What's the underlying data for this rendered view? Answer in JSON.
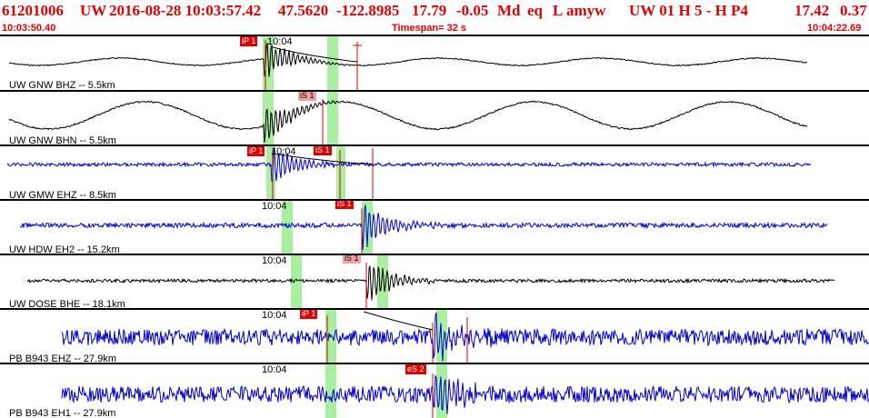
{
  "header": {
    "event_id": "61201006",
    "network": "UW",
    "datetime": "2016-08-28 10:03:57.42",
    "lat": "47.5620",
    "lon": "-122.8985",
    "depth": "17.79",
    "magnitude": "-0.05",
    "mag_type": "Md",
    "event_type": "eq",
    "flags": "L",
    "user": "amyw",
    "quality_info": "UW 01  H  5  -  H P4",
    "right_value_a": "17.42",
    "right_value_b": "0.37",
    "start_time": "10:03:50.40",
    "timespan": "Timespan=  32 s",
    "end_time": "10:04:22.69"
  },
  "colors": {
    "header_red": "#e00000",
    "trace_blue": "#0000d0",
    "trace_black": "#000000",
    "window_green": "#a8f0a0",
    "pick_red": "#e00000"
  },
  "time_tick": "10:04",
  "channels": [
    {
      "label": "UW GNW BHZ -- 5.5km",
      "color": "#000000",
      "picks": [
        "iP 1"
      ]
    },
    {
      "label": "UW GNW BHN -- 5.5km",
      "color": "#000000",
      "picks": [
        "iS 1"
      ]
    },
    {
      "label": "UW GMW EHZ -- 8.5km",
      "color": "#0000d0",
      "picks": [
        "iP 1",
        "iS 1"
      ]
    },
    {
      "label": "UW HDW EH2 -- 15.2km",
      "color": "#0000d0",
      "picks": [
        "iS 1"
      ]
    },
    {
      "label": "UW DOSE BHE -- 18.1km",
      "color": "#000000",
      "picks": [
        "iS 1"
      ]
    },
    {
      "label": "PB B943 EHZ -- 27.9km",
      "color": "#0000d0",
      "picks": [
        "iP 1"
      ]
    },
    {
      "label": "PB B943 EH1 -- 27.9km",
      "color": "#0000d0",
      "picks": [
        "eS 2"
      ]
    }
  ]
}
